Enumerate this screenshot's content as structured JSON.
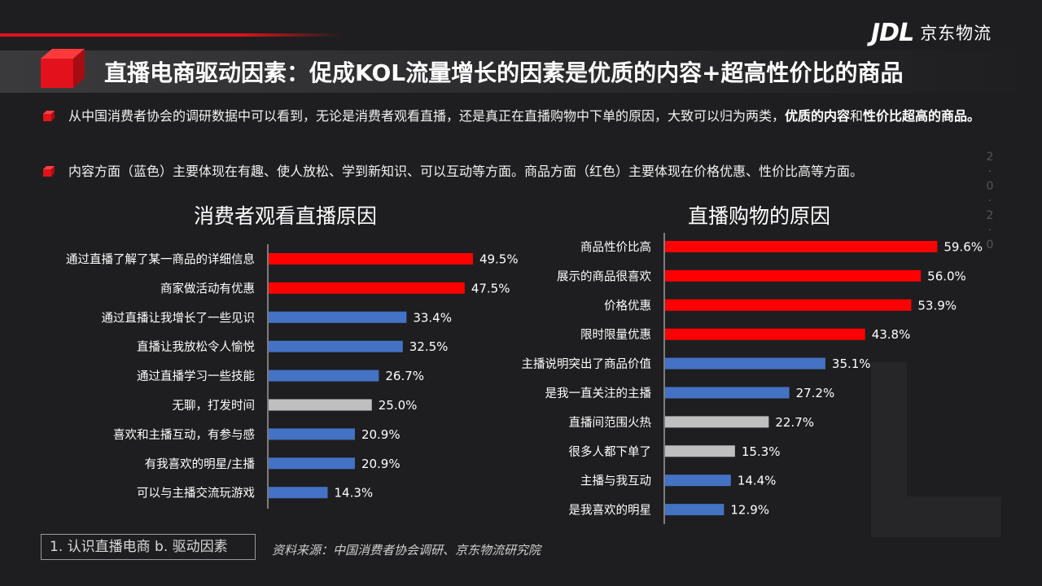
{
  "logo": {
    "brand_mark": "JDL",
    "name": "京东物流"
  },
  "header": {
    "title": "直播电商驱动因素：促成KOL流量增长的因素是优质的内容+超高性价比的商品"
  },
  "bullets": [
    {
      "text_before": "从中国消费者协会的调研数据中可以看到，无论是消费者观看直播，还是真正在直播购物中下单的原因，大致可以归为两类，",
      "bold1": "优质的内容",
      "mid": "和",
      "bold2": "性价比超高的商品。"
    },
    {
      "text": "内容方面（蓝色）主要体现在有趣、使人放松、学到新知识、可以互动等方面。商品方面（红色）主要体现在价格优惠、性价比高等方面。"
    }
  ],
  "side_year": [
    "2",
    "0",
    "2",
    "0"
  ],
  "colors": {
    "red": "#ff0000",
    "blue": "#4472c4",
    "grey": "#bfbfbf",
    "accent": "#e1121b"
  },
  "chart_data": [
    {
      "type": "bar",
      "orientation": "horizontal",
      "title": "消费者观看直播原因",
      "categories": [
        "通过直播了解了某一商品的详细信息",
        "商家做活动有优惠",
        "通过直播让我增长了一些见识",
        "直播让我放松令人愉悦",
        "通过直播学习一些技能",
        "无聊，打发时间",
        "喜欢和主播互动，有参与感",
        "有我喜欢的明星/主播",
        "可以与主播交流玩游戏"
      ],
      "values": [
        49.5,
        47.5,
        33.4,
        32.5,
        26.7,
        25.0,
        20.9,
        20.9,
        14.3
      ],
      "labels": [
        "49.5%",
        "47.5%",
        "33.4%",
        "32.5%",
        "26.7%",
        "25.0%",
        "20.9%",
        "20.9%",
        "14.3%"
      ],
      "bar_colors": [
        "red",
        "red",
        "blue",
        "blue",
        "blue",
        "grey",
        "blue",
        "blue",
        "blue"
      ],
      "xlim": [
        0,
        60
      ]
    },
    {
      "type": "bar",
      "orientation": "horizontal",
      "title": "直播购物的原因",
      "categories": [
        "商品性价比高",
        "展示的商品很喜欢",
        "价格优惠",
        "限时限量优惠",
        "主播说明突出了商品价值",
        "是我一直关注的主播",
        "直播间范围火热",
        "很多人都下单了",
        "主播与我互动",
        "是我喜欢的明星"
      ],
      "values": [
        59.6,
        56.0,
        53.9,
        43.8,
        35.1,
        27.2,
        22.7,
        15.3,
        14.4,
        12.9
      ],
      "labels": [
        "59.6%",
        "56.0%",
        "53.9%",
        "43.8%",
        "35.1%",
        "27.2%",
        "22.7%",
        "15.3%",
        "14.4%",
        "12.9%"
      ],
      "bar_colors": [
        "red",
        "red",
        "red",
        "red",
        "blue",
        "blue",
        "grey",
        "grey",
        "blue",
        "blue"
      ],
      "xlim": [
        0,
        70
      ]
    }
  ],
  "footer": {
    "section": "1. 认识直播电商  b. 驱动因素",
    "source": "资料来源：中国消费者协会调研、京东物流研究院"
  }
}
